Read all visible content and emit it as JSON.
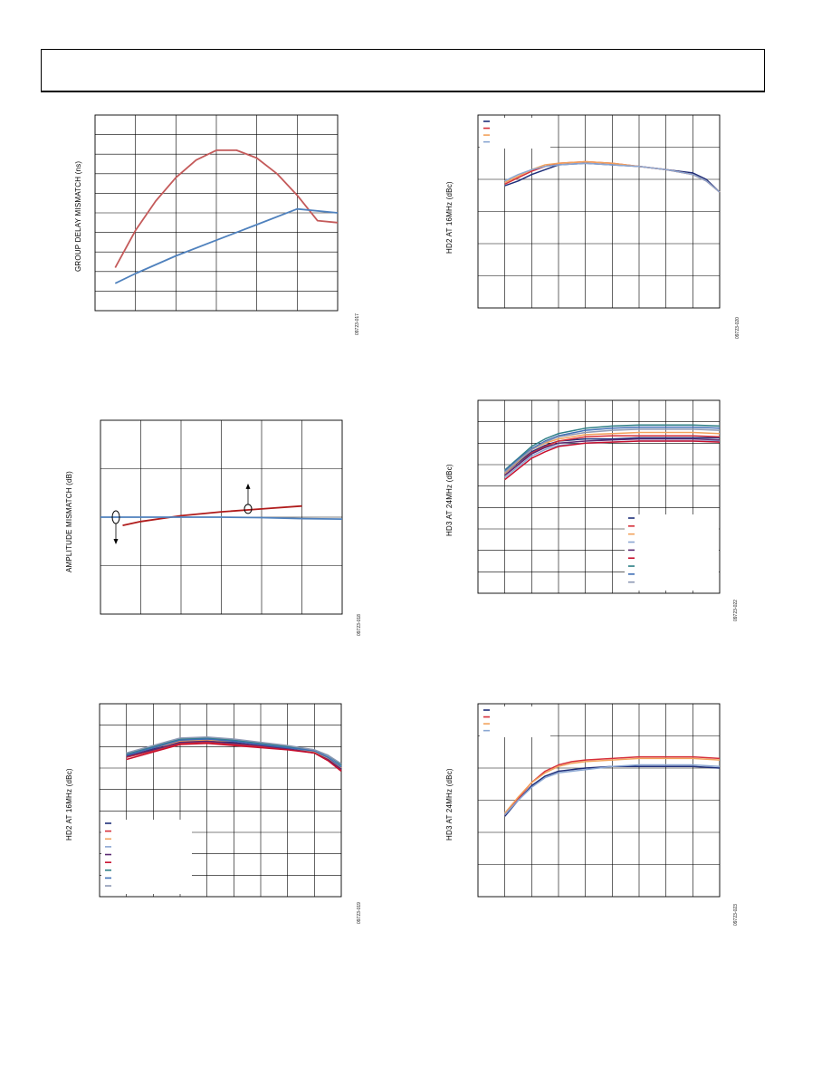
{
  "colors": {
    "navy": "#1f2f7a",
    "red": "#d6303a",
    "orange": "#f2a25c",
    "ltblue": "#8aa6d2",
    "purple": "#5a2a72",
    "crimson": "#c8102e",
    "teal": "#2e7f86",
    "mblue": "#3f6fb6",
    "gray": "#8c98b4",
    "rose": "#c45a5a",
    "steel": "#4f81bd",
    "darkred": "#b01c1c",
    "axis": "#000000"
  },
  "charts": [
    {
      "id": "group-delay",
      "ylabel": "GROUP DELAY MISMATCH (ns)",
      "figure_id": "09723-017",
      "chart_data": {
        "type": "line",
        "title": "",
        "xlabel": "",
        "ylabel": "GROUP DELAY MISMATCH (ns)",
        "xlim": [
          0,
          6
        ],
        "ylim": [
          0,
          10
        ],
        "x_divisions": 6,
        "y_divisions": 10,
        "grid": true,
        "series": [
          {
            "color": "rose",
            "x": [
              0.5,
              1,
              1.5,
              2,
              2.5,
              3,
              3.5,
              4,
              4.5,
              5,
              5.5,
              6
            ],
            "values": [
              2.2,
              4.1,
              5.6,
              6.8,
              7.7,
              8.2,
              8.2,
              7.8,
              7.0,
              5.9,
              4.6,
              4.5
            ]
          },
          {
            "color": "steel",
            "x": [
              0.5,
              1,
              2,
              3,
              4,
              5,
              6
            ],
            "values": [
              1.4,
              1.9,
              2.8,
              3.6,
              4.4,
              5.2,
              5.0
            ]
          }
        ]
      }
    },
    {
      "id": "amplitude",
      "ylabel": "AMPLITUDE MISMATCH (dB)",
      "figure_id": "09723-018",
      "chart_data": {
        "type": "line",
        "title": "",
        "xlabel": "",
        "ylabel": "AMPLITUDE MISMATCH (dB)",
        "xlim": [
          0,
          6
        ],
        "ylim": [
          0,
          4
        ],
        "x_divisions": 6,
        "y_divisions": 4,
        "grid": true,
        "series": [
          {
            "color": "darkred",
            "x": [
              0.55,
              1,
              2,
              3,
              4,
              5
            ],
            "values": [
              1.83,
              1.91,
              2.03,
              2.11,
              2.17,
              2.23
            ]
          },
          {
            "color": "steel",
            "x": [
              0,
              1,
              2,
              3,
              4,
              5,
              6
            ],
            "values": [
              2.0,
              2.0,
              2.0,
              2.0,
              1.99,
              1.97,
              1.96
            ]
          }
        ]
      }
    },
    {
      "id": "hd2-16-a",
      "ylabel": "HD2 AT 16MHz (dBc)",
      "figure_id": "09723-019",
      "chart_data": {
        "type": "line",
        "title": "",
        "xlabel": "",
        "ylabel": "HD2 AT 16MHz (dBc)",
        "xlim": [
          0,
          9
        ],
        "ylim": [
          0,
          9
        ],
        "x_divisions": 9,
        "y_divisions": 9,
        "grid": true,
        "series": [
          {
            "color": "navy",
            "x": [
              1,
              2,
              3,
              4,
              5,
              6,
              7,
              8,
              8.5,
              9
            ],
            "values": [
              6.6,
              6.9,
              7.3,
              7.3,
              7.2,
              7.1,
              6.95,
              6.75,
              6.5,
              6.0
            ]
          },
          {
            "color": "red",
            "x": [
              1,
              2,
              3,
              4,
              5,
              6,
              7,
              8,
              8.5,
              9
            ],
            "values": [
              6.5,
              6.8,
              7.15,
              7.2,
              7.1,
              7.0,
              6.9,
              6.7,
              6.35,
              5.9
            ]
          },
          {
            "color": "orange",
            "x": [
              1,
              2,
              3,
              4,
              5,
              6,
              7,
              8,
              8.5,
              9
            ],
            "values": [
              6.6,
              6.95,
              7.25,
              7.3,
              7.25,
              7.1,
              6.95,
              6.75,
              6.45,
              6.0
            ]
          },
          {
            "color": "ltblue",
            "x": [
              1,
              2,
              3,
              4,
              5,
              6,
              7,
              8,
              8.5,
              9
            ],
            "values": [
              6.7,
              7.0,
              7.35,
              7.4,
              7.3,
              7.15,
              7.0,
              6.8,
              6.55,
              6.1
            ]
          },
          {
            "color": "purple",
            "x": [
              1,
              2,
              3,
              4,
              5,
              6,
              7,
              8,
              8.5,
              9
            ],
            "values": [
              6.55,
              6.85,
              7.2,
              7.25,
              7.15,
              7.05,
              6.9,
              6.7,
              6.4,
              5.95
            ]
          },
          {
            "color": "crimson",
            "x": [
              1,
              2,
              3,
              4,
              5,
              6,
              7,
              8,
              8.5,
              9
            ],
            "values": [
              6.4,
              6.75,
              7.1,
              7.15,
              7.05,
              6.95,
              6.85,
              6.7,
              6.35,
              5.85
            ]
          },
          {
            "color": "teal",
            "x": [
              1,
              2,
              3,
              4,
              5,
              6,
              7,
              8,
              8.5,
              9
            ],
            "values": [
              6.65,
              7.0,
              7.35,
              7.4,
              7.3,
              7.15,
              7.0,
              6.85,
              6.6,
              6.15
            ]
          },
          {
            "color": "mblue",
            "x": [
              1,
              2,
              3,
              4,
              5,
              6,
              7,
              8,
              8.5,
              9
            ],
            "values": [
              6.6,
              6.95,
              7.3,
              7.35,
              7.25,
              7.1,
              6.95,
              6.8,
              6.5,
              6.05
            ]
          },
          {
            "color": "gray",
            "x": [
              1,
              2,
              3,
              4,
              5,
              6,
              7,
              8,
              8.5,
              9
            ],
            "values": [
              6.7,
              7.05,
              7.4,
              7.45,
              7.35,
              7.2,
              7.05,
              6.85,
              6.6,
              6.2
            ]
          }
        ],
        "legend": {
          "placement": "bottom-left",
          "box": true
        }
      }
    },
    {
      "id": "hd2-16-b",
      "ylabel": "HD2 AT 16MHz (dBc)",
      "figure_id": "09723-020",
      "chart_data": {
        "type": "line",
        "title": "",
        "xlabel": "",
        "ylabel": "HD2 AT 16MHz (dBc)",
        "xlim": [
          0,
          9
        ],
        "ylim": [
          0,
          6
        ],
        "x_divisions": 9,
        "y_divisions": 6,
        "grid": true,
        "series": [
          {
            "color": "navy",
            "x": [
              1,
              1.5,
              2,
              2.5,
              3,
              4,
              5,
              6,
              7,
              8,
              8.5,
              9
            ],
            "values": [
              3.8,
              3.95,
              4.15,
              4.3,
              4.45,
              4.5,
              4.45,
              4.4,
              4.3,
              4.2,
              4.0,
              3.6
            ]
          },
          {
            "color": "red",
            "x": [
              1,
              1.5,
              2,
              2.5,
              3,
              4,
              5,
              6,
              7,
              8,
              8.5,
              9
            ],
            "values": [
              3.85,
              4.05,
              4.25,
              4.4,
              4.5,
              4.55,
              4.5,
              4.4,
              4.3,
              4.15,
              3.95,
              3.6
            ]
          },
          {
            "color": "orange",
            "x": [
              1,
              1.5,
              2,
              2.5,
              3,
              4,
              5,
              6,
              7,
              8,
              8.5,
              9
            ],
            "values": [
              3.9,
              4.1,
              4.3,
              4.45,
              4.5,
              4.55,
              4.5,
              4.4,
              4.3,
              4.15,
              3.95,
              3.6
            ]
          },
          {
            "color": "ltblue",
            "x": [
              1,
              1.5,
              2,
              2.5,
              3,
              4,
              5,
              6,
              7,
              8,
              8.5,
              9
            ],
            "values": [
              3.95,
              4.15,
              4.3,
              4.4,
              4.45,
              4.5,
              4.45,
              4.4,
              4.3,
              4.15,
              3.95,
              3.6
            ]
          }
        ],
        "legend": {
          "placement": "top-left",
          "box": true
        }
      }
    },
    {
      "id": "hd3-24-a",
      "ylabel": "HD3 AT 24MHz (dBc)",
      "figure_id": "09723-022",
      "chart_data": {
        "type": "line",
        "title": "",
        "xlabel": "",
        "ylabel": "HD3 AT 24MHz (dBc)",
        "xlim": [
          0,
          9
        ],
        "ylim": [
          0,
          9
        ],
        "x_divisions": 9,
        "y_divisions": 9,
        "grid": true,
        "series": [
          {
            "color": "navy",
            "x": [
              1,
              1.5,
              2,
              2.5,
              3,
              4,
              5,
              6,
              7,
              8,
              9
            ],
            "values": [
              5.6,
              6.1,
              6.6,
              6.9,
              7.1,
              7.2,
              7.2,
              7.25,
              7.25,
              7.25,
              7.25
            ]
          },
          {
            "color": "red",
            "x": [
              1,
              1.5,
              2,
              2.5,
              3,
              4,
              5,
              6,
              7,
              8,
              9
            ],
            "values": [
              5.5,
              6.0,
              6.55,
              6.85,
              7.1,
              7.3,
              7.35,
              7.35,
              7.35,
              7.35,
              7.3
            ]
          },
          {
            "color": "orange",
            "x": [
              1,
              1.5,
              2,
              2.5,
              3,
              4,
              5,
              6,
              7,
              8,
              9
            ],
            "values": [
              5.6,
              6.15,
              6.7,
              7.0,
              7.2,
              7.4,
              7.45,
              7.5,
              7.5,
              7.5,
              7.45
            ]
          },
          {
            "color": "ltblue",
            "x": [
              1,
              1.5,
              2,
              2.5,
              3,
              4,
              5,
              6,
              7,
              8,
              9
            ],
            "values": [
              5.4,
              5.9,
              6.4,
              6.7,
              6.9,
              7.0,
              7.05,
              7.1,
              7.1,
              7.1,
              7.1
            ]
          },
          {
            "color": "purple",
            "x": [
              1,
              1.5,
              2,
              2.5,
              3,
              4,
              5,
              6,
              7,
              8,
              9
            ],
            "values": [
              5.5,
              6.0,
              6.5,
              6.8,
              7.0,
              7.1,
              7.15,
              7.2,
              7.2,
              7.2,
              7.15
            ]
          },
          {
            "color": "crimson",
            "x": [
              1,
              1.5,
              2,
              2.5,
              3,
              4,
              5,
              6,
              7,
              8,
              9
            ],
            "values": [
              5.3,
              5.8,
              6.3,
              6.6,
              6.85,
              7.0,
              7.05,
              7.1,
              7.1,
              7.1,
              7.05
            ]
          },
          {
            "color": "teal",
            "x": [
              1,
              1.5,
              2,
              2.5,
              3,
              4,
              5,
              6,
              7,
              8,
              9
            ],
            "values": [
              5.75,
              6.3,
              6.85,
              7.2,
              7.45,
              7.7,
              7.8,
              7.85,
              7.85,
              7.85,
              7.8
            ]
          },
          {
            "color": "mblue",
            "x": [
              1,
              1.5,
              2,
              2.5,
              3,
              4,
              5,
              6,
              7,
              8,
              9
            ],
            "values": [
              5.7,
              6.25,
              6.75,
              7.1,
              7.35,
              7.6,
              7.7,
              7.75,
              7.75,
              7.75,
              7.7
            ]
          },
          {
            "color": "gray",
            "x": [
              1,
              1.5,
              2,
              2.5,
              3,
              4,
              5,
              6,
              7,
              8,
              9
            ],
            "values": [
              5.65,
              6.2,
              6.7,
              7.05,
              7.3,
              7.5,
              7.6,
              7.65,
              7.65,
              7.65,
              7.6
            ]
          }
        ],
        "legend": {
          "placement": "bottom-right",
          "box": true
        }
      }
    },
    {
      "id": "hd3-24-b",
      "ylabel": "HD3 AT 24MHz (dBc)",
      "figure_id": "09723-023",
      "chart_data": {
        "type": "line",
        "title": "",
        "xlabel": "",
        "ylabel": "HD3 AT 24MHz (dBc)",
        "xlim": [
          0,
          9
        ],
        "ylim": [
          0,
          6
        ],
        "x_divisions": 9,
        "y_divisions": 6,
        "grid": true,
        "series": [
          {
            "color": "navy",
            "x": [
              1,
              1.5,
              2,
              2.5,
              3,
              3.5,
              4,
              5,
              6,
              7,
              8,
              9
            ],
            "values": [
              2.5,
              3.0,
              3.45,
              3.75,
              3.9,
              3.95,
              4.0,
              4.05,
              4.05,
              4.05,
              4.05,
              4.0
            ]
          },
          {
            "color": "red",
            "x": [
              1,
              1.5,
              2,
              2.5,
              3,
              3.5,
              4,
              5,
              6,
              7,
              8,
              9
            ],
            "values": [
              2.55,
              3.05,
              3.55,
              3.9,
              4.1,
              4.2,
              4.25,
              4.3,
              4.35,
              4.35,
              4.35,
              4.3
            ]
          },
          {
            "color": "orange",
            "x": [
              1,
              1.5,
              2,
              2.5,
              3,
              3.5,
              4,
              5,
              6,
              7,
              8,
              9
            ],
            "values": [
              2.6,
              3.1,
              3.55,
              3.85,
              4.05,
              4.15,
              4.2,
              4.25,
              4.3,
              4.3,
              4.3,
              4.25
            ]
          },
          {
            "color": "ltblue",
            "x": [
              1,
              1.5,
              2,
              2.5,
              3,
              3.5,
              4,
              5,
              6,
              7,
              8,
              9
            ],
            "values": [
              2.55,
              3.0,
              3.4,
              3.7,
              3.85,
              3.9,
              3.95,
              4.05,
              4.1,
              4.1,
              4.1,
              4.05
            ]
          }
        ],
        "legend": {
          "placement": "top-left",
          "box": true
        }
      }
    }
  ]
}
